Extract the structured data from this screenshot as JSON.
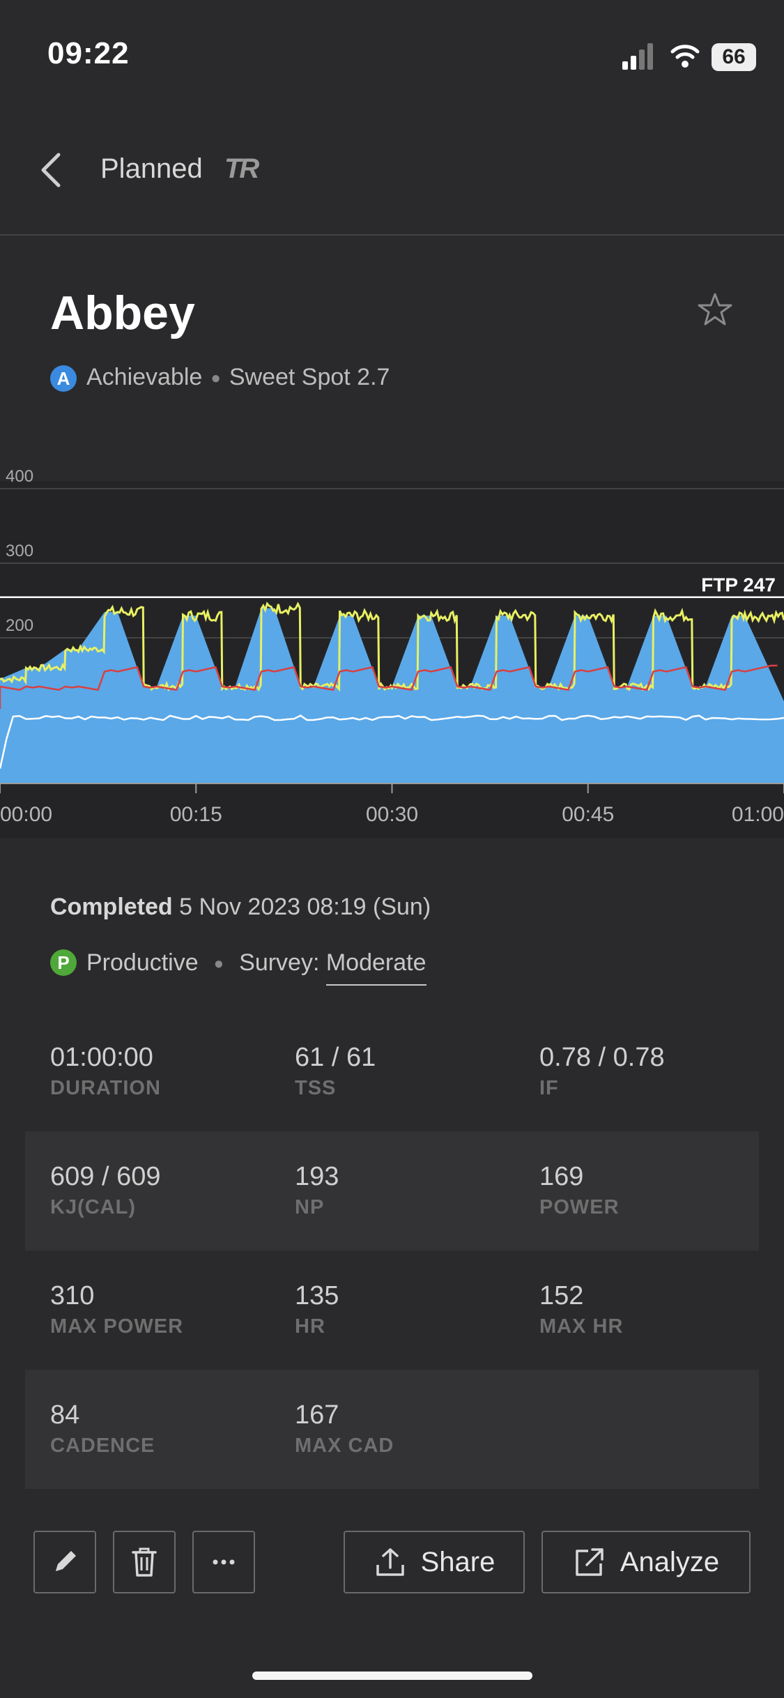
{
  "status": {
    "time": "09:22",
    "battery": "66"
  },
  "header": {
    "back_label": "Planned",
    "brand": "TR"
  },
  "workout": {
    "title": "Abbey",
    "badge": "A",
    "difficulty": "Achievable",
    "zone": "Sweet Spot 2.7"
  },
  "chart_data": {
    "type": "area",
    "y_ticks": [
      "400",
      "300",
      "200"
    ],
    "x_ticks": [
      "00:00",
      "00:15",
      "00:30",
      "00:45",
      "01:00"
    ],
    "ylim": [
      0,
      400
    ],
    "ftp_label": "FTP 247",
    "ftp_value": 247,
    "series": [
      {
        "unit": "power target (W)",
        "color": "#58a7e8",
        "x_min": [
          0,
          2,
          3,
          5,
          6,
          8,
          9,
          11,
          12,
          14,
          15,
          17,
          18,
          20,
          21,
          23,
          24,
          26,
          27,
          29,
          30,
          32,
          33,
          35,
          36,
          38,
          39,
          41,
          42,
          44,
          45,
          47,
          48,
          50,
          51,
          53,
          54,
          56,
          57,
          60
        ],
        "values": [
          140,
          155,
          155,
          180,
          180,
          230,
          230,
          130,
          130,
          225,
          225,
          130,
          130,
          235,
          235,
          130,
          130,
          225,
          225,
          130,
          130,
          225,
          225,
          130,
          130,
          225,
          225,
          130,
          130,
          225,
          225,
          130,
          130,
          225,
          225,
          130,
          130,
          225,
          225,
          110
        ]
      },
      {
        "unit": "power actual (W)",
        "color": "#e8f062"
      },
      {
        "unit": "heart rate",
        "color": "#d94040"
      },
      {
        "unit": "cadence",
        "color": "#ffffff"
      }
    ]
  },
  "completed": {
    "label": "Completed",
    "date": "5 Nov 2023 08:19 (Sun)"
  },
  "survey": {
    "badge": "P",
    "result": "Productive",
    "survey_label": "Survey:",
    "survey_value": "Moderate"
  },
  "stats": [
    [
      {
        "value": "01:00:00",
        "label": "DURATION"
      },
      {
        "value": "61 / 61",
        "label": "TSS"
      },
      {
        "value": "0.78 / 0.78",
        "label": "IF"
      }
    ],
    [
      {
        "value": "609 / 609",
        "label": "KJ(CAL)"
      },
      {
        "value": "193",
        "label": "NP"
      },
      {
        "value": "169",
        "label": "POWER"
      }
    ],
    [
      {
        "value": "310",
        "label": "MAX POWER"
      },
      {
        "value": "135",
        "label": "HR"
      },
      {
        "value": "152",
        "label": "MAX HR"
      }
    ],
    [
      {
        "value": "84",
        "label": "CADENCE"
      },
      {
        "value": "167",
        "label": "MAX CAD"
      }
    ]
  ],
  "actions": {
    "share": "Share",
    "analyze": "Analyze"
  }
}
